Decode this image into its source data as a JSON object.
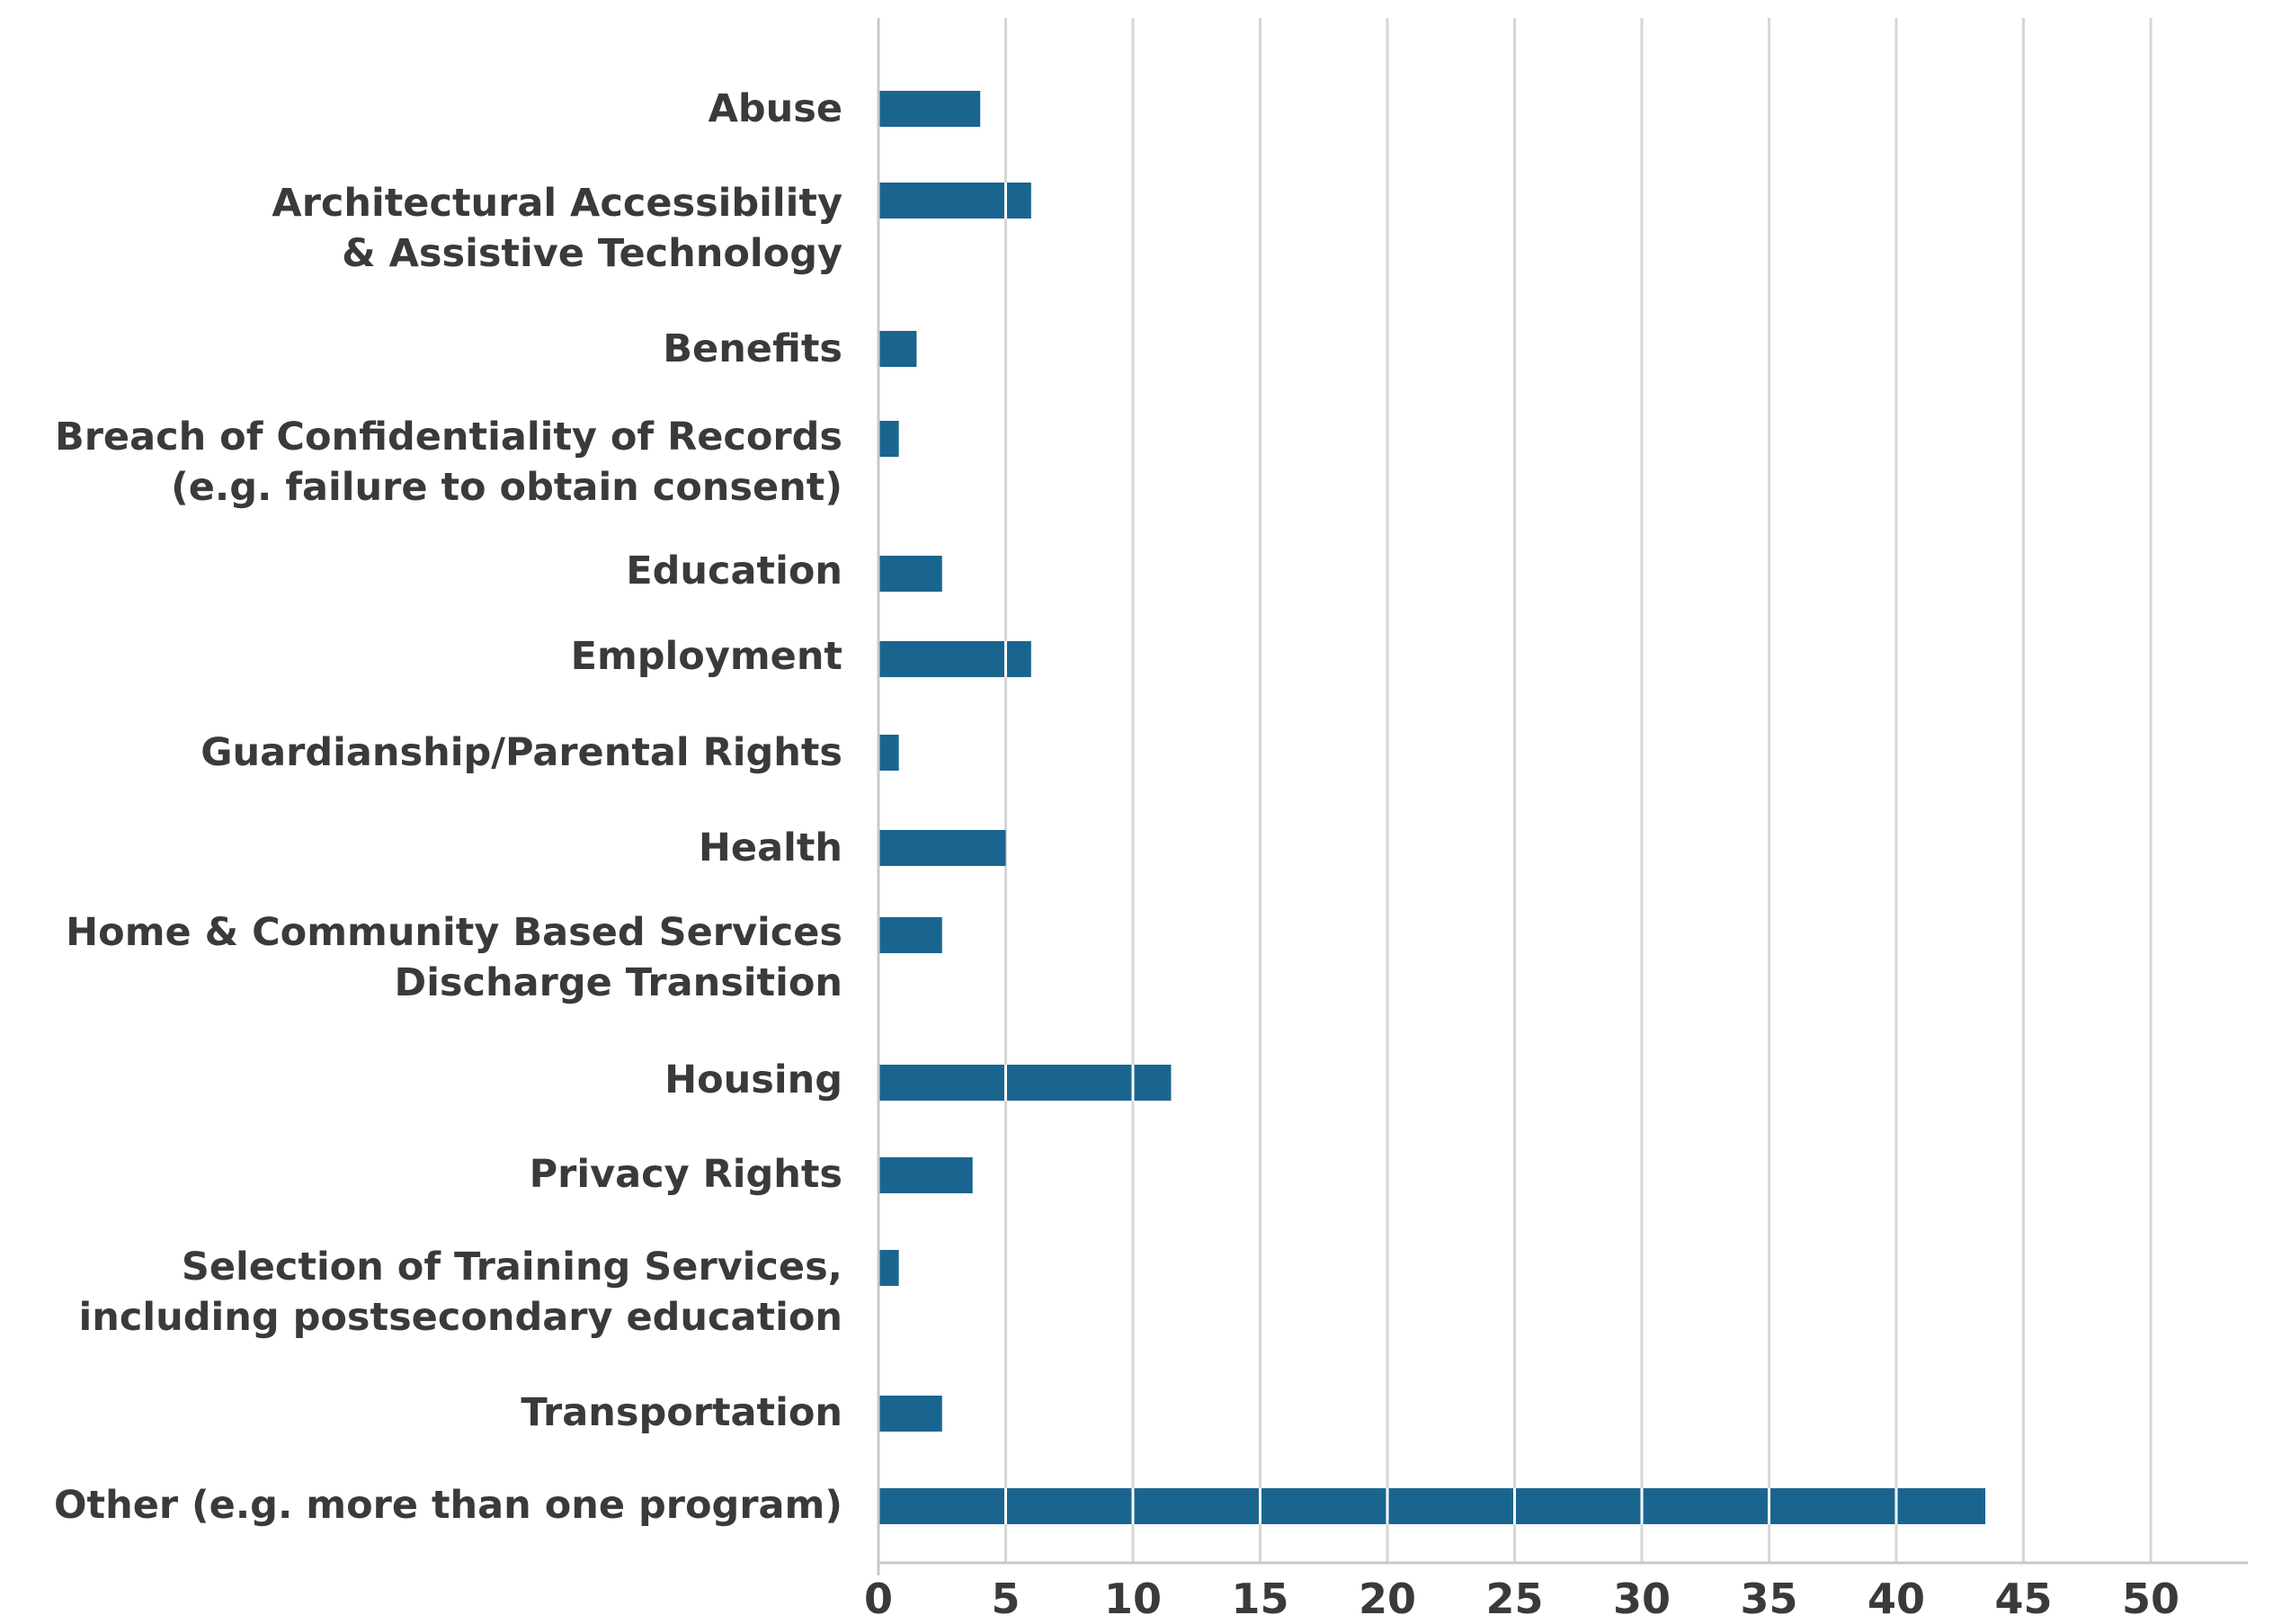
{
  "chart_data": {
    "type": "bar",
    "orientation": "horizontal",
    "title": "",
    "xlabel": "",
    "ylabel": "",
    "xlim": [
      0,
      52
    ],
    "x_ticks": [
      0,
      5,
      10,
      15,
      20,
      25,
      30,
      35,
      40,
      45,
      50
    ],
    "grid": true,
    "bar_color": "#1a658f",
    "categories": [
      {
        "lines": [
          "Abuse"
        ],
        "value": 4
      },
      {
        "lines": [
          "Architectural Accessibility",
          "& Assistive Technology"
        ],
        "value": 6
      },
      {
        "lines": [
          "Benefits"
        ],
        "value": 1.5
      },
      {
        "lines": [
          "Breach of Confidentiality of Records",
          "(e.g. failure to obtain consent)"
        ],
        "value": 0.8
      },
      {
        "lines": [
          "Education"
        ],
        "value": 2.5
      },
      {
        "lines": [
          "Employment"
        ],
        "value": 6
      },
      {
        "lines": [
          "Guardianship/Parental Rights"
        ],
        "value": 0.8
      },
      {
        "lines": [
          "Health"
        ],
        "value": 5
      },
      {
        "lines": [
          "Home & Community Based Services",
          "Discharge Transition"
        ],
        "value": 2.5
      },
      {
        "lines": [
          "Housing"
        ],
        "value": 11.5
      },
      {
        "lines": [
          "Privacy Rights"
        ],
        "value": 3.7
      },
      {
        "lines": [
          "Selection of Training Services,",
          "including postsecondary education"
        ],
        "value": 0.8
      },
      {
        "lines": [
          "Transportation"
        ],
        "value": 2.5
      },
      {
        "lines": [
          "Other (e.g. more than one program)"
        ],
        "value": 43.5
      }
    ]
  }
}
